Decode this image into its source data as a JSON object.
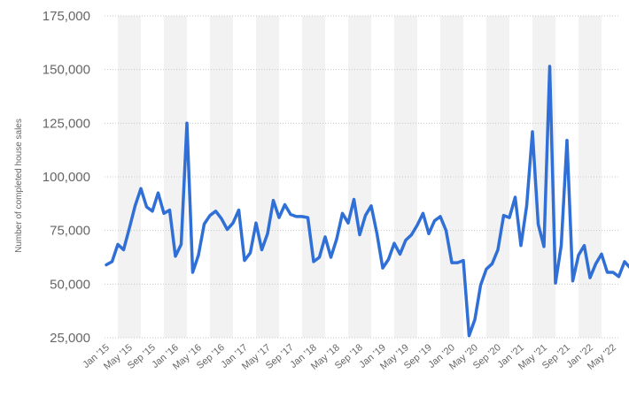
{
  "chart_data": {
    "type": "line",
    "title": "",
    "ylabel": "Number of completed house sales",
    "xlabel": "",
    "ylim": [
      25000,
      175000
    ],
    "y_ticks": [
      25000,
      50000,
      75000,
      100000,
      125000,
      150000,
      175000
    ],
    "y_tick_labels": [
      "25,000",
      "50,000",
      "75,000",
      "100,000",
      "125,000",
      "150,000",
      "175,000"
    ],
    "x_tick_labels": [
      "Jan '15",
      "May '15",
      "Sep '15",
      "Jan '16",
      "May '16",
      "Sep '16",
      "Jan '17",
      "May '17",
      "Sep '17",
      "Jan '18",
      "May '18",
      "Sep '18",
      "Jan '19",
      "May '19",
      "Sep '19",
      "Jan '20",
      "May '20",
      "Sep '20",
      "Jan '21",
      "May '21",
      "Sep '21",
      "Jan '22",
      "May '22"
    ],
    "grid": true,
    "line_color": "#2f6fd6",
    "band_color": "#f2f2f2",
    "series": [
      {
        "values": [
          59000,
          60500,
          68500,
          66000,
          76000,
          86500,
          94500,
          86000,
          84000,
          92500,
          83000,
          84500,
          63000,
          68500,
          125000,
          55500,
          63500,
          78000,
          82000,
          84000,
          80500,
          75500,
          78500,
          84500,
          61000,
          64500,
          78500,
          66000,
          73500,
          89000,
          81000,
          87000,
          82500,
          81500,
          81500,
          81000,
          60500,
          62500,
          72000,
          62500,
          71000,
          83000,
          78500,
          89500,
          73000,
          82000,
          86500,
          73500,
          57500,
          61500,
          69000,
          64000,
          70500,
          73000,
          77500,
          83000,
          73500,
          79500,
          81500,
          75000,
          60000,
          60000,
          61000,
          26000,
          33500,
          49500,
          57000,
          59500,
          66000,
          82000,
          81000,
          90500,
          68000,
          86500,
          121000,
          78000,
          67500,
          151500,
          50500,
          68000,
          117000,
          51500,
          63500,
          68000,
          53000,
          59500,
          64000,
          55500,
          55500,
          53500,
          60500,
          57500
        ]
      }
    ]
  }
}
